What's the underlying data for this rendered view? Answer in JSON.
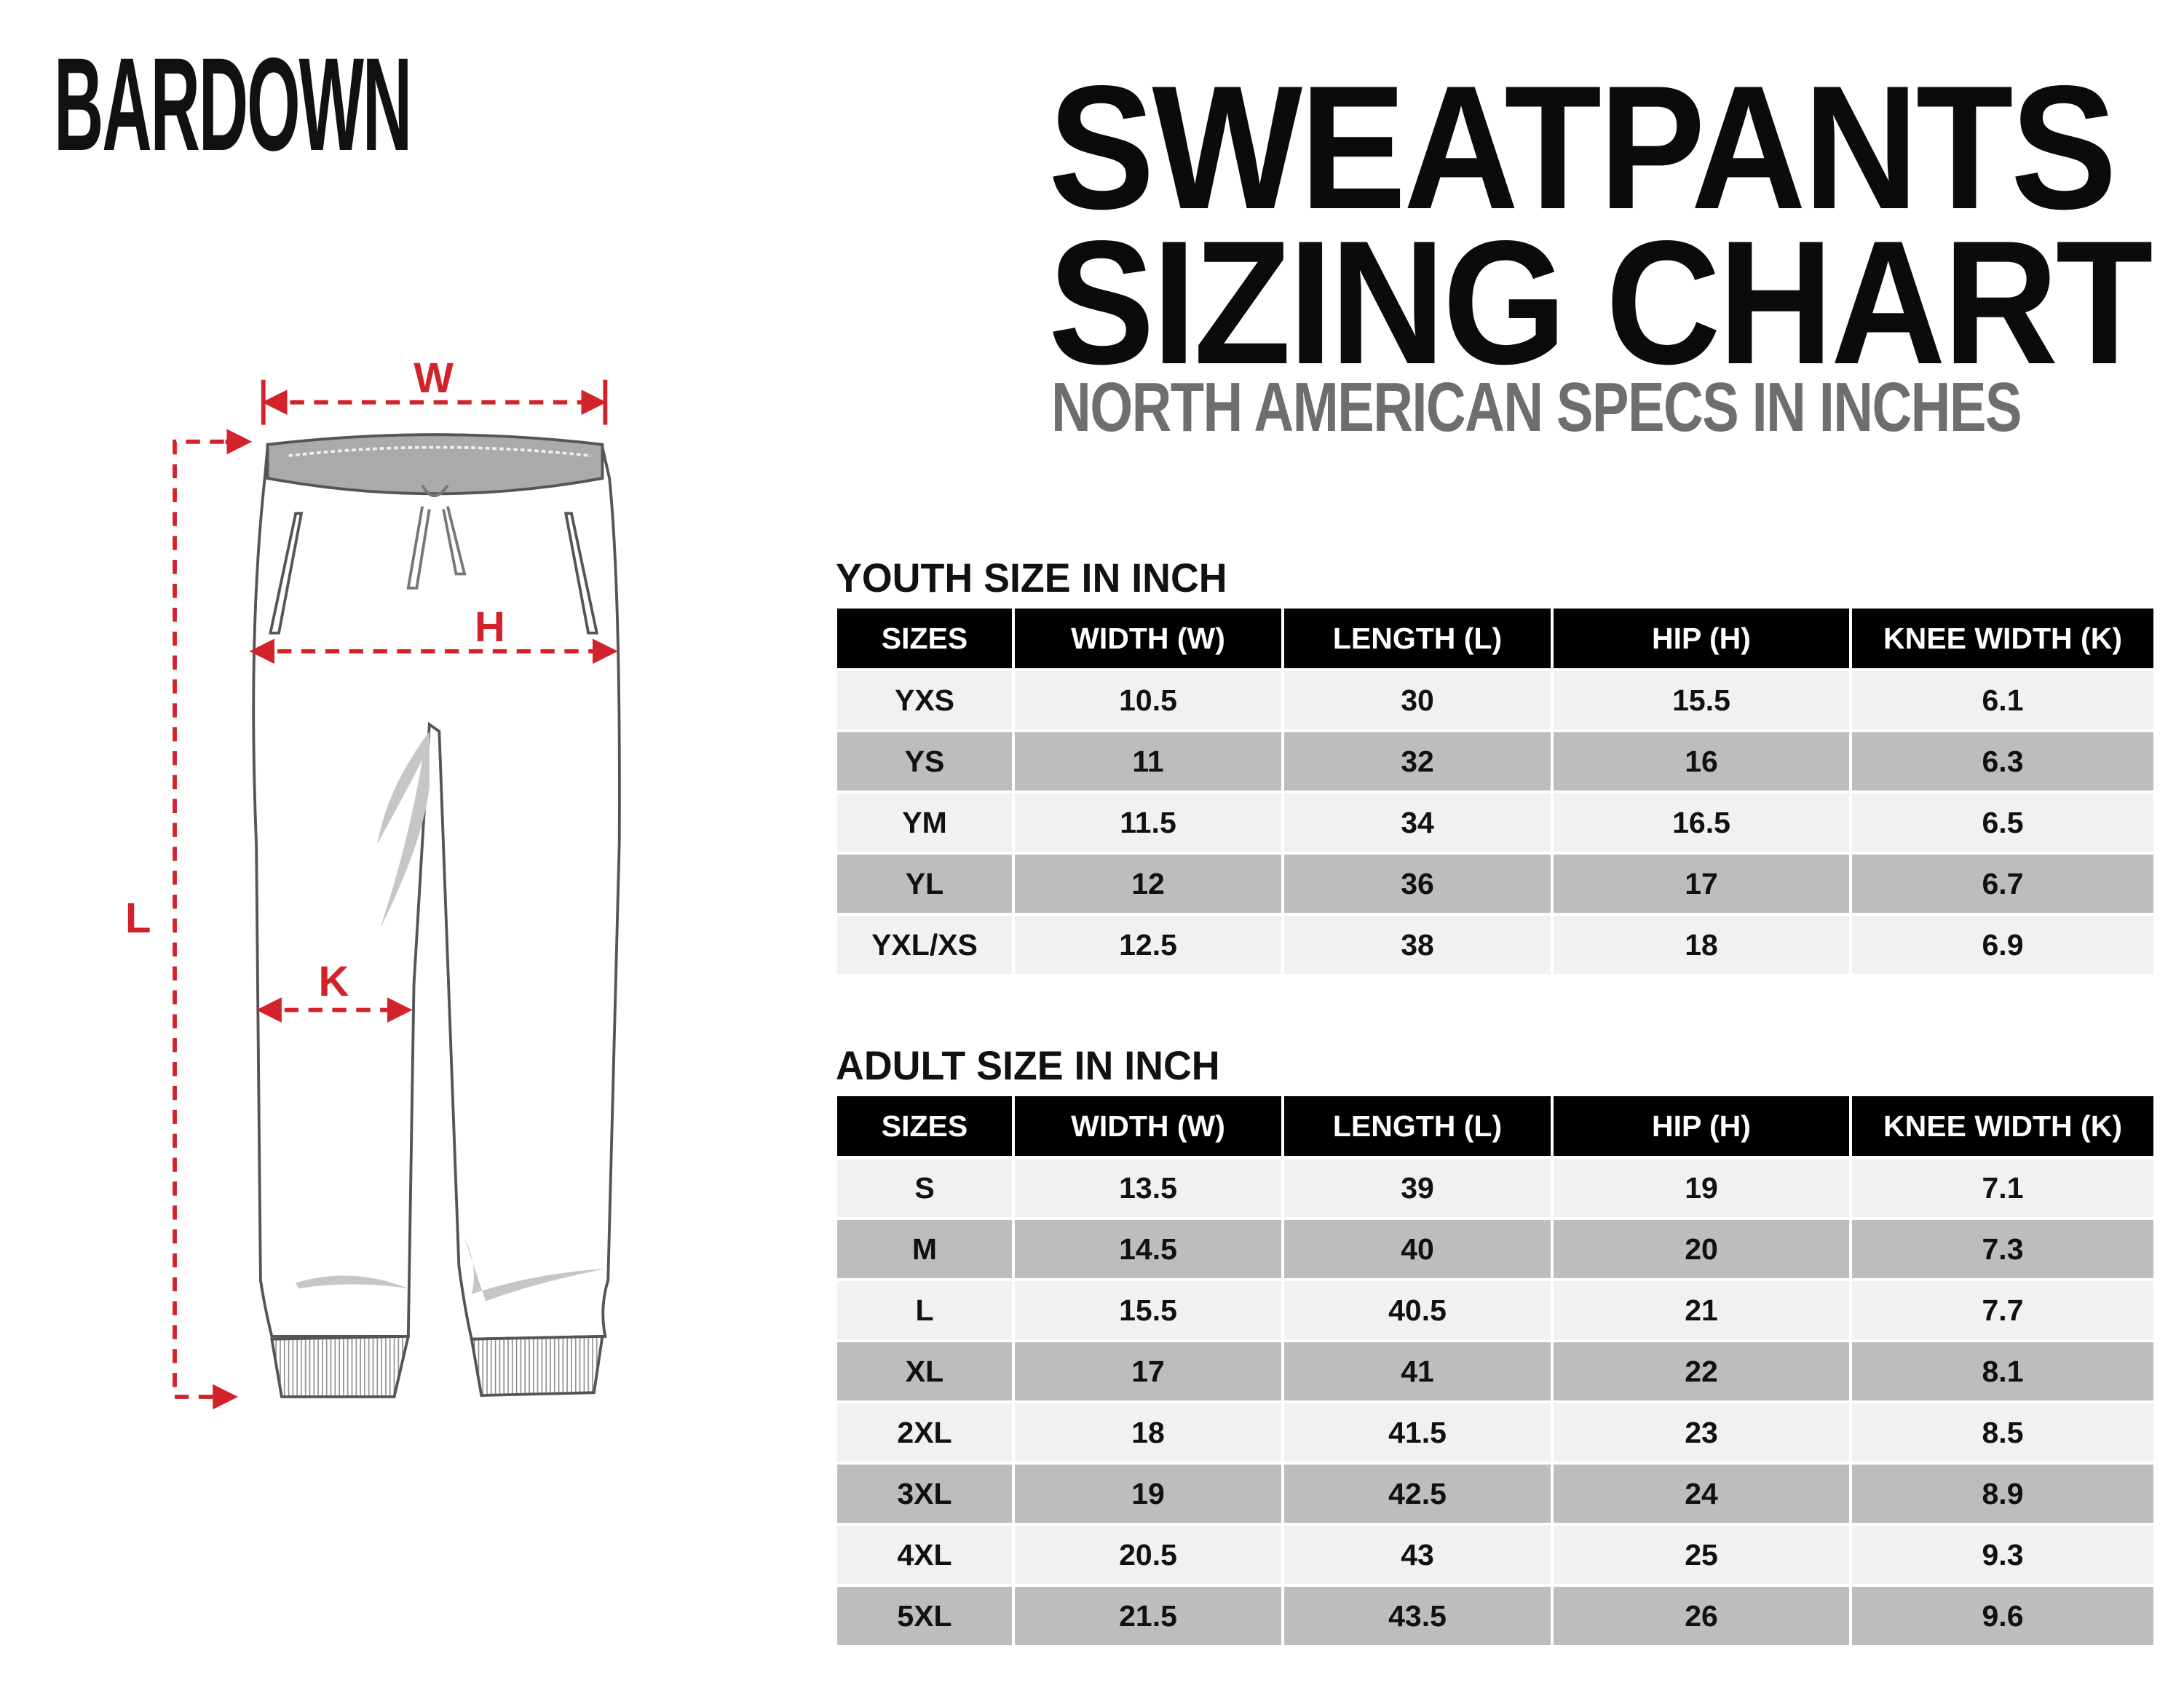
{
  "brand": {
    "logo_text": "BARDOWN"
  },
  "header": {
    "title_line1": "SWEATPANTS",
    "title_line2": "SIZING CHART",
    "subtitle": "NORTH AMERICAN SPECS IN INCHES"
  },
  "diagram": {
    "labels": {
      "width": "W",
      "hip": "H",
      "knee": "K",
      "length": "L"
    },
    "accent_color": "#d2232a"
  },
  "colors": {
    "header_bg": "#000000",
    "row_light": "#f1f1f1",
    "row_dark": "#bcbdbf",
    "subtitle": "#6d6e70"
  },
  "youth": {
    "title": "YOUTH SIZE IN INCH",
    "columns": [
      "SIZES",
      "WIDTH (W)",
      "LENGTH (L)",
      "HIP (H)",
      "KNEE WIDTH (K)"
    ],
    "rows": [
      [
        "YXS",
        "10.5",
        "30",
        "15.5",
        "6.1"
      ],
      [
        "YS",
        "11",
        "32",
        "16",
        "6.3"
      ],
      [
        "YM",
        "11.5",
        "34",
        "16.5",
        "6.5"
      ],
      [
        "YL",
        "12",
        "36",
        "17",
        "6.7"
      ],
      [
        "YXL/XS",
        "12.5",
        "38",
        "18",
        "6.9"
      ]
    ]
  },
  "adult": {
    "title": "ADULT SIZE IN INCH",
    "columns": [
      "SIZES",
      "WIDTH (W)",
      "LENGTH (L)",
      "HIP (H)",
      "KNEE WIDTH (K)"
    ],
    "rows": [
      [
        "S",
        "13.5",
        "39",
        "19",
        "7.1"
      ],
      [
        "M",
        "14.5",
        "40",
        "20",
        "7.3"
      ],
      [
        "L",
        "15.5",
        "40.5",
        "21",
        "7.7"
      ],
      [
        "XL",
        "17",
        "41",
        "22",
        "8.1"
      ],
      [
        "2XL",
        "18",
        "41.5",
        "23",
        "8.5"
      ],
      [
        "3XL",
        "19",
        "42.5",
        "24",
        "8.9"
      ],
      [
        "4XL",
        "20.5",
        "43",
        "25",
        "9.3"
      ],
      [
        "5XL",
        "21.5",
        "43.5",
        "26",
        "9.6"
      ]
    ]
  }
}
